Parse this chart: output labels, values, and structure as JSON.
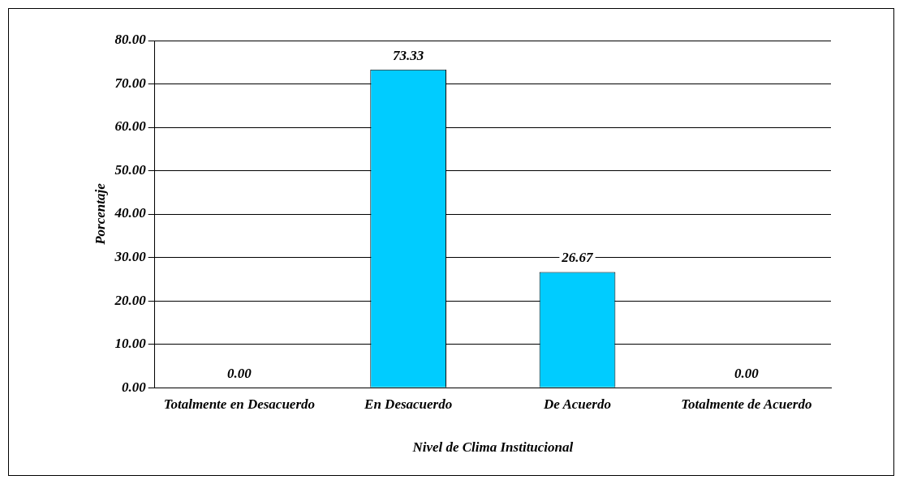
{
  "chart_data": {
    "type": "bar",
    "xlabel": "Nivel de Clima Institucional",
    "ylabel": "Porcentaje",
    "categories": [
      "Totalmente en Desacuerdo",
      "En Desacuerdo",
      "De Acuerdo",
      "Totalmente de Acuerdo"
    ],
    "values": [
      0,
      73.33,
      26.67,
      0
    ],
    "color": "#00ccff",
    "value_labels": [
      "0.00",
      "73.33",
      "26.67",
      "0.00"
    ],
    "ylim": [
      0,
      80
    ],
    "yticks": [
      {
        "value": 0,
        "label": "0.00"
      },
      {
        "value": 10,
        "label": "10.00"
      },
      {
        "value": 20,
        "label": "20.00"
      },
      {
        "value": 30,
        "label": "30.00"
      },
      {
        "value": 40,
        "label": "40.00"
      },
      {
        "value": 50,
        "label": "50.00"
      },
      {
        "value": 60,
        "label": "60.00"
      },
      {
        "value": 70,
        "label": "70.00"
      },
      {
        "value": 80,
        "label": "80.00"
      }
    ],
    "grid": "y"
  }
}
